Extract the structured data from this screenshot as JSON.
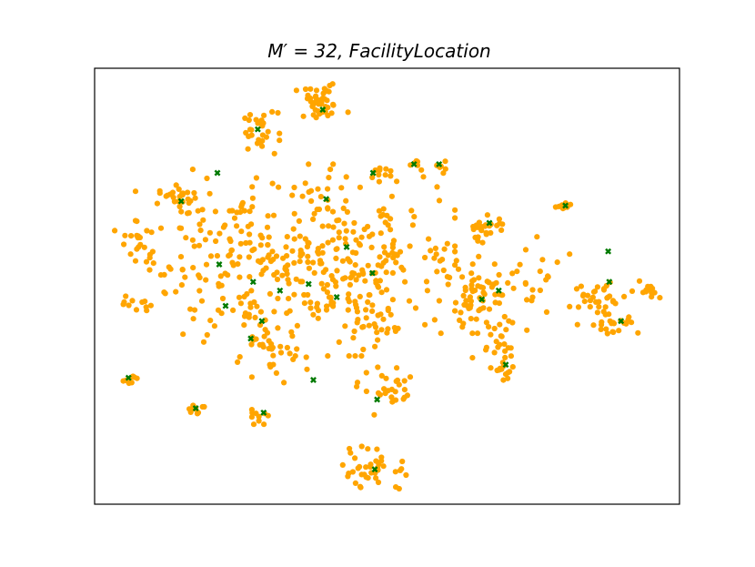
{
  "chart_data": {
    "type": "scatter",
    "title": "M′ = 32, FacilityLocation",
    "xlabel": "",
    "ylabel": "",
    "xlim": [
      0,
      100
    ],
    "ylim": [
      0,
      100
    ],
    "grid": false,
    "axes_ticks": false,
    "colors": {
      "points": "#FFA500",
      "selected": "#007A00"
    },
    "series": [
      {
        "kind": "points",
        "clusters": [
          {
            "cx": 38.5,
            "cy": 92.0,
            "sx": 2.2,
            "sy": 2.0,
            "n": 42
          },
          {
            "cx": 28.3,
            "cy": 85.3,
            "sx": 1.5,
            "sy": 2.3,
            "n": 28
          },
          {
            "cx": 14.3,
            "cy": 69.8,
            "sx": 1.7,
            "sy": 1.6,
            "n": 26
          },
          {
            "cx": 7.4,
            "cy": 60.4,
            "sx": 1.8,
            "sy": 2.5,
            "n": 20
          },
          {
            "cx": 29.0,
            "cy": 57.0,
            "sx": 10.0,
            "sy": 9.0,
            "n": 240
          },
          {
            "cx": 44.0,
            "cy": 56.0,
            "sx": 8.0,
            "sy": 10.0,
            "n": 150
          },
          {
            "cx": 7.2,
            "cy": 45.5,
            "sx": 1.1,
            "sy": 1.0,
            "n": 10
          },
          {
            "cx": 5.9,
            "cy": 28.5,
            "sx": 0.8,
            "sy": 0.6,
            "n": 10
          },
          {
            "cx": 17.5,
            "cy": 22.0,
            "sx": 0.9,
            "sy": 0.9,
            "n": 10
          },
          {
            "cx": 28.4,
            "cy": 20.3,
            "sx": 1.0,
            "sy": 0.9,
            "n": 10
          },
          {
            "cx": 47.9,
            "cy": 8.0,
            "sx": 3.0,
            "sy": 2.5,
            "n": 40
          },
          {
            "cx": 50.3,
            "cy": 26.0,
            "sx": 2.5,
            "sy": 2.5,
            "n": 28
          },
          {
            "cx": 30.0,
            "cy": 34.5,
            "sx": 3.0,
            "sy": 3.0,
            "n": 36
          },
          {
            "cx": 47.0,
            "cy": 41.0,
            "sx": 2.5,
            "sy": 2.5,
            "n": 28
          },
          {
            "cx": 49.0,
            "cy": 75.5,
            "sx": 0.8,
            "sy": 0.8,
            "n": 8
          },
          {
            "cx": 54.9,
            "cy": 78.1,
            "sx": 0.7,
            "sy": 0.8,
            "n": 6
          },
          {
            "cx": 59.0,
            "cy": 77.7,
            "sx": 0.6,
            "sy": 0.8,
            "n": 6
          },
          {
            "cx": 67.0,
            "cy": 63.0,
            "sx": 1.6,
            "sy": 1.6,
            "n": 26
          },
          {
            "cx": 66.0,
            "cy": 48.0,
            "sx": 4.2,
            "sy": 4.0,
            "n": 80
          },
          {
            "cx": 69.0,
            "cy": 38.0,
            "sx": 2.0,
            "sy": 2.5,
            "n": 22
          },
          {
            "cx": 70.0,
            "cy": 30.0,
            "sx": 1.2,
            "sy": 1.5,
            "n": 14
          },
          {
            "cx": 80.4,
            "cy": 68.4,
            "sx": 0.9,
            "sy": 0.5,
            "n": 10
          },
          {
            "cx": 86.5,
            "cy": 47.5,
            "sx": 2.4,
            "sy": 2.0,
            "n": 30
          },
          {
            "cx": 88.0,
            "cy": 42.0,
            "sx": 2.5,
            "sy": 1.5,
            "n": 24
          },
          {
            "cx": 94.5,
            "cy": 49.0,
            "sx": 1.2,
            "sy": 1.0,
            "n": 14
          },
          {
            "cx": 59.0,
            "cy": 58.0,
            "sx": 1.0,
            "sy": 1.0,
            "n": 8
          },
          {
            "cx": 77.0,
            "cy": 52.0,
            "sx": 2.0,
            "sy": 6.0,
            "n": 14
          }
        ]
      },
      {
        "kind": "selected",
        "marker": "x",
        "x": [
          39.0,
          27.9,
          21.0,
          39.6,
          47.6,
          54.6,
          58.9,
          14.8,
          67.5,
          80.5,
          87.8,
          21.3,
          43.1,
          31.7,
          27.1,
          36.6,
          47.5,
          69.1,
          66.2,
          41.4,
          28.6,
          26.7,
          22.4,
          37.4,
          5.8,
          17.3,
          28.9,
          48.3,
          47.9,
          70.3,
          88.0,
          90.0
        ],
        "y": [
          90.5,
          86.0,
          76.0,
          70.0,
          76.0,
          78.0,
          78.0,
          69.5,
          64.5,
          68.5,
          58.0,
          55.0,
          59.0,
          49.0,
          51.0,
          50.5,
          53.0,
          49.0,
          47.0,
          47.5,
          42.0,
          38.0,
          45.5,
          28.5,
          29.0,
          22.0,
          21.0,
          24.0,
          8.0,
          32.0,
          51.0,
          42.0
        ]
      }
    ]
  }
}
